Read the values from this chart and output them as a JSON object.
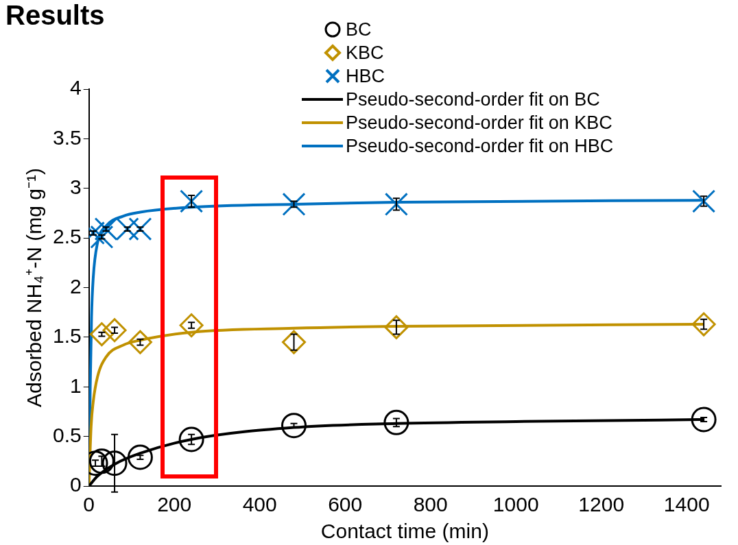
{
  "chart_data": {
    "type": "scatter",
    "title": "Results",
    "xlabel": "Contact time (min)",
    "ylabel": "Adsorbed NH₄⁺-N (mg g⁻¹)",
    "xlim": [
      0,
      1480
    ],
    "xticks": [
      0,
      200,
      400,
      600,
      800,
      1000,
      1200,
      1400
    ],
    "ylim": [
      0,
      4
    ],
    "yticks": [
      0,
      0.5,
      1,
      1.5,
      2,
      2.5,
      3,
      3.5,
      4
    ],
    "grid": false,
    "legend": "top right",
    "series": [
      {
        "name": "BC",
        "marker": "circle",
        "color": "#000000",
        "x": [
          15,
          30,
          60,
          120,
          240,
          480,
          720,
          1440
        ],
        "values": [
          0.23,
          0.25,
          0.23,
          0.29,
          0.47,
          0.61,
          0.64,
          0.67
        ],
        "errors": [
          0.03,
          0.05,
          0.29,
          0.02,
          0.05,
          0.02,
          0.04,
          0.02
        ]
      },
      {
        "name": "KBC",
        "marker": "diamond",
        "color": "#c09100",
        "x": [
          30,
          60,
          120,
          240,
          480,
          720,
          1440
        ],
        "values": [
          1.53,
          1.57,
          1.45,
          1.62,
          1.45,
          1.6,
          1.63
        ],
        "errors": [
          0.02,
          0.03,
          0.03,
          0.03,
          0.08,
          0.07,
          0.05
        ]
      },
      {
        "name": "HBC",
        "marker": "cross",
        "color": "#0070c0",
        "x": [
          10,
          30,
          40,
          90,
          120,
          240,
          480,
          720,
          1440
        ],
        "values": [
          2.55,
          2.51,
          2.59,
          2.59,
          2.59,
          2.87,
          2.84,
          2.84,
          2.87
        ],
        "errors": [
          0.02,
          0.02,
          0.02,
          0.02,
          0.02,
          0.06,
          0.03,
          0.06,
          0.05
        ]
      },
      {
        "name": "Pseudo-second-order fit on BC",
        "type": "line",
        "marker": "none",
        "color": "#000000",
        "x": [
          0,
          20,
          60,
          120,
          240,
          480,
          720,
          1000,
          1440
        ],
        "values": [
          0,
          0.1,
          0.22,
          0.33,
          0.47,
          0.59,
          0.63,
          0.65,
          0.67
        ]
      },
      {
        "name": "Pseudo-second-order fit on KBC",
        "type": "line",
        "marker": "none",
        "color": "#c09100",
        "x": [
          0,
          5,
          10,
          20,
          40,
          80,
          120,
          240,
          480,
          720,
          1440
        ],
        "values": [
          0,
          0.6,
          0.85,
          1.1,
          1.3,
          1.42,
          1.47,
          1.55,
          1.59,
          1.61,
          1.63
        ]
      },
      {
        "name": "Pseudo-second-order fit on HBC",
        "type": "line",
        "marker": "none",
        "color": "#0070c0",
        "x": [
          0,
          3,
          6,
          10,
          20,
          40,
          80,
          120,
          240,
          480,
          720,
          1440
        ],
        "values": [
          0,
          1.0,
          1.7,
          2.1,
          2.45,
          2.62,
          2.72,
          2.76,
          2.81,
          2.84,
          2.86,
          2.88
        ]
      }
    ]
  }
}
